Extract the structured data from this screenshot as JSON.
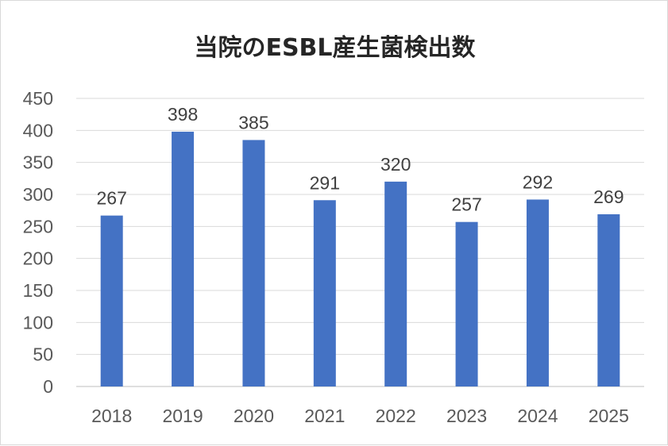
{
  "chart_data": {
    "type": "bar",
    "title": "当院のESBL産生菌検出数",
    "categories": [
      "2018",
      "2019",
      "2020",
      "2021",
      "2022",
      "2023",
      "2024",
      "2025"
    ],
    "values": [
      267,
      398,
      385,
      291,
      320,
      257,
      292,
      269
    ],
    "ylim": [
      0,
      450
    ],
    "yticks": [
      0,
      50,
      100,
      150,
      200,
      250,
      300,
      350,
      400,
      450
    ],
    "xlabel": "",
    "ylabel": "",
    "grid": true,
    "legend": "none",
    "data_labels": true,
    "bar_color": "#4472c4",
    "grid_color": "#d9d9d9",
    "text_color": "#595959"
  }
}
